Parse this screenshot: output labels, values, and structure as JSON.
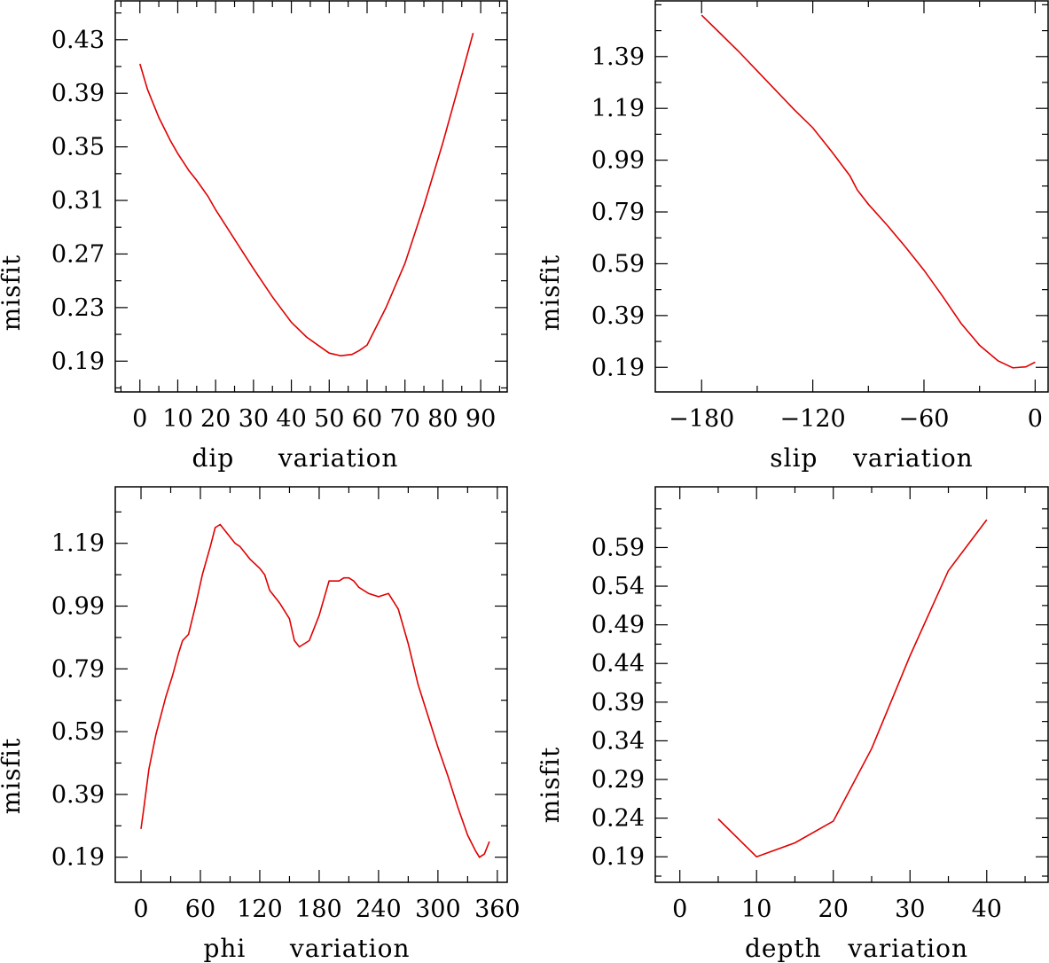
{
  "chart_data": [
    {
      "id": "dip",
      "type": "line",
      "xlabel": "dip     variation",
      "ylabel": "misfit",
      "xlim": [
        -6.5,
        97
      ],
      "ylim": [
        0.167,
        0.459
      ],
      "xticks": [
        0,
        10,
        20,
        30,
        40,
        50,
        60,
        70,
        80,
        90
      ],
      "yticks": [
        0.19,
        0.23,
        0.27,
        0.31,
        0.35,
        0.39,
        0.43
      ],
      "ytick_labels": [
        "0.19",
        "0.23",
        "0.27",
        "0.31",
        "0.35",
        "0.39",
        "0.43"
      ],
      "series": [
        {
          "name": "misfit",
          "x": [
            0,
            2,
            5,
            8,
            10,
            13,
            15,
            18,
            20,
            25,
            30,
            35,
            40,
            44,
            48,
            50,
            53,
            56,
            58,
            60,
            65,
            70,
            75,
            80,
            85,
            88
          ],
          "y": [
            0.412,
            0.393,
            0.372,
            0.355,
            0.345,
            0.332,
            0.325,
            0.313,
            0.303,
            0.281,
            0.259,
            0.238,
            0.219,
            0.208,
            0.2,
            0.196,
            0.194,
            0.195,
            0.198,
            0.202,
            0.23,
            0.263,
            0.306,
            0.353,
            0.404,
            0.435
          ]
        }
      ]
    },
    {
      "id": "slip",
      "type": "line",
      "xlabel": "slip    variation",
      "ylabel": "misfit",
      "xlim": [
        -205,
        7
      ],
      "ylim": [
        0.095,
        1.605
      ],
      "xticks": [
        -180,
        -120,
        -60,
        0
      ],
      "xtick_labels": [
        "−180",
        "−120",
        "−60",
        "0"
      ],
      "yticks": [
        0.19,
        0.39,
        0.59,
        0.79,
        0.99,
        1.19,
        1.39
      ],
      "ytick_labels": [
        "0.19",
        "0.39",
        "0.59",
        "0.79",
        "0.99",
        "1.19",
        "1.39"
      ],
      "series": [
        {
          "name": "misfit",
          "x": [
            -180,
            -170,
            -160,
            -150,
            -140,
            -130,
            -120,
            -110,
            -100,
            -96,
            -90,
            -80,
            -70,
            -60,
            -50,
            -40,
            -30,
            -20,
            -12,
            -5,
            0
          ],
          "y": [
            1.55,
            1.48,
            1.41,
            1.335,
            1.26,
            1.185,
            1.115,
            1.025,
            0.93,
            0.875,
            0.82,
            0.74,
            0.655,
            0.565,
            0.465,
            0.36,
            0.275,
            0.215,
            0.188,
            0.192,
            0.21
          ]
        }
      ]
    },
    {
      "id": "phi",
      "type": "line",
      "xlabel": "phi     variation",
      "ylabel": "misfit",
      "xlim": [
        -26,
        370
      ],
      "ylim": [
        0.11,
        1.37
      ],
      "xticks": [
        0,
        60,
        120,
        180,
        240,
        300,
        360
      ],
      "yticks": [
        0.19,
        0.39,
        0.59,
        0.79,
        0.99,
        1.19
      ],
      "ytick_labels": [
        "0.19",
        "0.39",
        "0.59",
        "0.79",
        "0.99",
        "1.19"
      ],
      "series": [
        {
          "name": "misfit",
          "x": [
            0,
            3,
            8,
            15,
            25,
            32,
            38,
            42,
            48,
            55,
            62,
            70,
            75,
            80,
            85,
            90,
            95,
            100,
            110,
            120,
            125,
            130,
            140,
            150,
            155,
            160,
            170,
            180,
            190,
            200,
            205,
            210,
            215,
            220,
            230,
            240,
            250,
            260,
            270,
            280,
            290,
            300,
            310,
            320,
            330,
            338,
            342,
            347,
            352
          ],
          "y": [
            0.28,
            0.35,
            0.47,
            0.58,
            0.7,
            0.77,
            0.84,
            0.88,
            0.9,
            0.99,
            1.09,
            1.18,
            1.24,
            1.25,
            1.23,
            1.21,
            1.19,
            1.18,
            1.14,
            1.11,
            1.09,
            1.04,
            1.0,
            0.95,
            0.88,
            0.86,
            0.88,
            0.96,
            1.07,
            1.07,
            1.08,
            1.08,
            1.07,
            1.05,
            1.03,
            1.02,
            1.03,
            0.98,
            0.87,
            0.74,
            0.64,
            0.54,
            0.45,
            0.35,
            0.26,
            0.21,
            0.19,
            0.2,
            0.24
          ]
        }
      ]
    },
    {
      "id": "depth",
      "type": "line",
      "xlabel": "depth   variation",
      "ylabel": "misfit",
      "xlim": [
        -3.2,
        48
      ],
      "ylim": [
        0.157,
        0.6685
      ],
      "xticks": [
        0,
        10,
        20,
        30,
        40
      ],
      "yticks": [
        0.19,
        0.24,
        0.29,
        0.34,
        0.39,
        0.44,
        0.49,
        0.54,
        0.59
      ],
      "ytick_labels": [
        "0.19",
        "0.24",
        "0.29",
        "0.34",
        "0.39",
        "0.44",
        "0.49",
        "0.54",
        "0.59"
      ],
      "series": [
        {
          "name": "misfit",
          "x": [
            5,
            10,
            15,
            20,
            25,
            30,
            35,
            40
          ],
          "y": [
            0.239,
            0.19,
            0.208,
            0.236,
            0.33,
            0.45,
            0.56,
            0.626
          ]
        }
      ]
    }
  ]
}
